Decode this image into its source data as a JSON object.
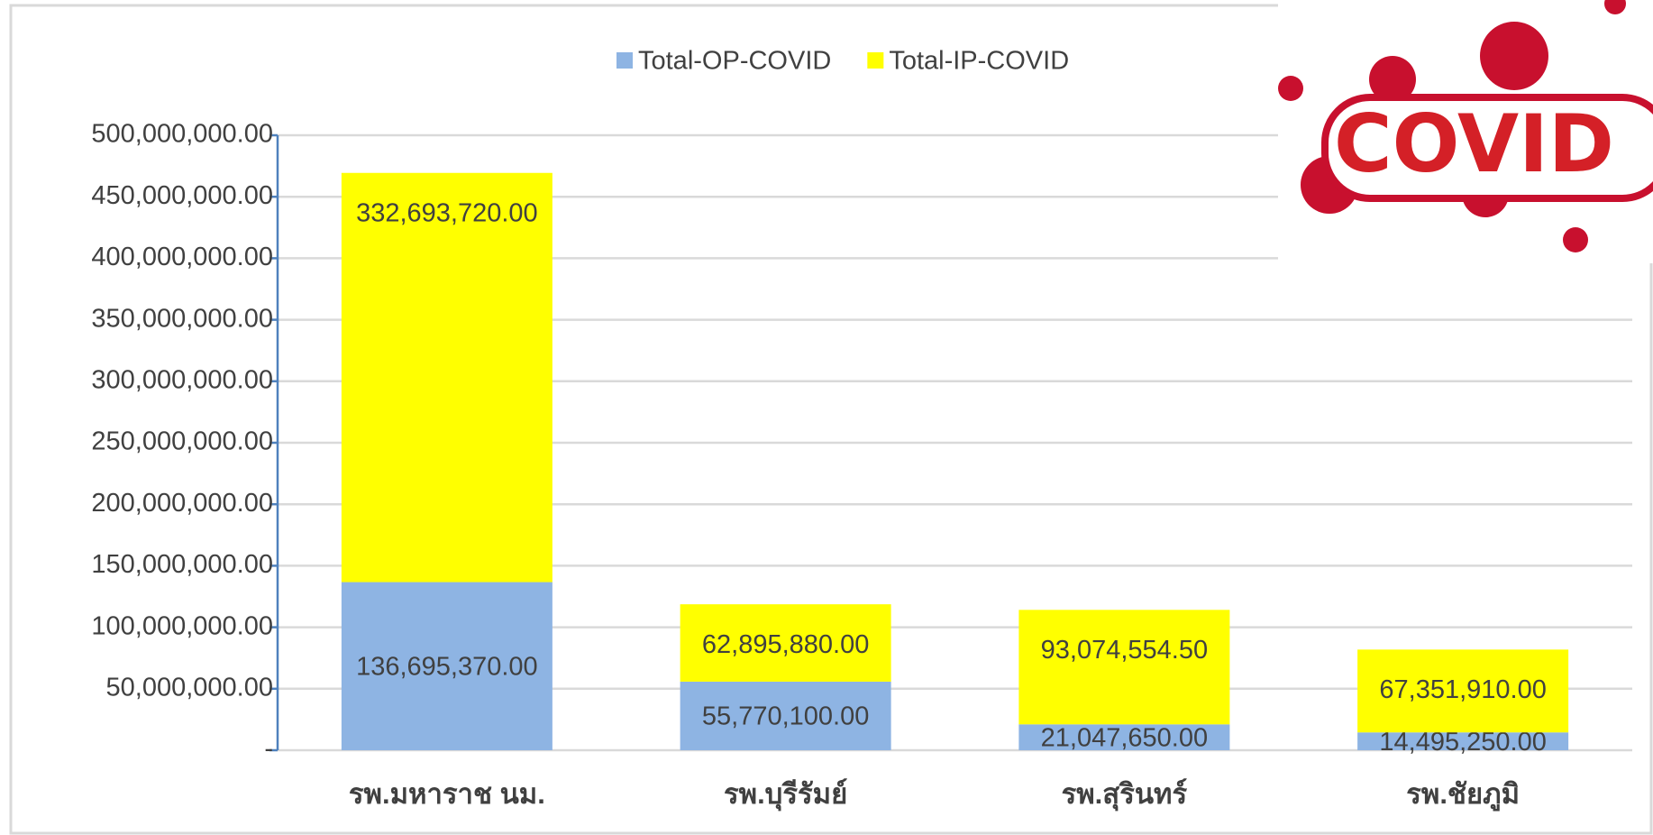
{
  "chart_data": {
    "type": "stacked_bar",
    "annotation": "COVID",
    "categories": [
      "รพ.มหาราช นม.",
      "รพ.บุรีรัมย์",
      "รพ.สุรินทร์",
      "รพ.ชัยภูมิ"
    ],
    "series": [
      {
        "name": "Total-OP-COVID",
        "color": "#8eb4e3",
        "values": [
          136695370,
          55770100,
          21047650,
          14495250
        ],
        "value_labels": [
          "136,695,370.00",
          "55,770,100.00",
          "21,047,650.00",
          "14,495,250.00"
        ]
      },
      {
        "name": "Total-IP-COVID",
        "color": "#ffff00",
        "values": [
          332693720,
          62895880,
          93074554.5,
          67351910
        ],
        "value_labels": [
          "332,693,720.00",
          "62,895,880.00",
          "93,074,554.50",
          "67,351,910.00"
        ]
      }
    ],
    "ylim": [
      0,
      500000000
    ],
    "yticks": [
      {
        "value": 0,
        "label": "-"
      },
      {
        "value": 50000000,
        "label": "50,000,000.00"
      },
      {
        "value": 100000000,
        "label": "100,000,000.00"
      },
      {
        "value": 150000000,
        "label": "150,000,000.00"
      },
      {
        "value": 200000000,
        "label": "200,000,000.00"
      },
      {
        "value": 250000000,
        "label": "250,000,000.00"
      },
      {
        "value": 300000000,
        "label": "300,000,000.00"
      },
      {
        "value": 350000000,
        "label": "350,000,000.00"
      },
      {
        "value": 400000000,
        "label": "400,000,000.00"
      },
      {
        "value": 450000000,
        "label": "450,000,000.00"
      },
      {
        "value": 500000000,
        "label": "500,000,000.00"
      }
    ],
    "grid": true,
    "legend": "top"
  }
}
